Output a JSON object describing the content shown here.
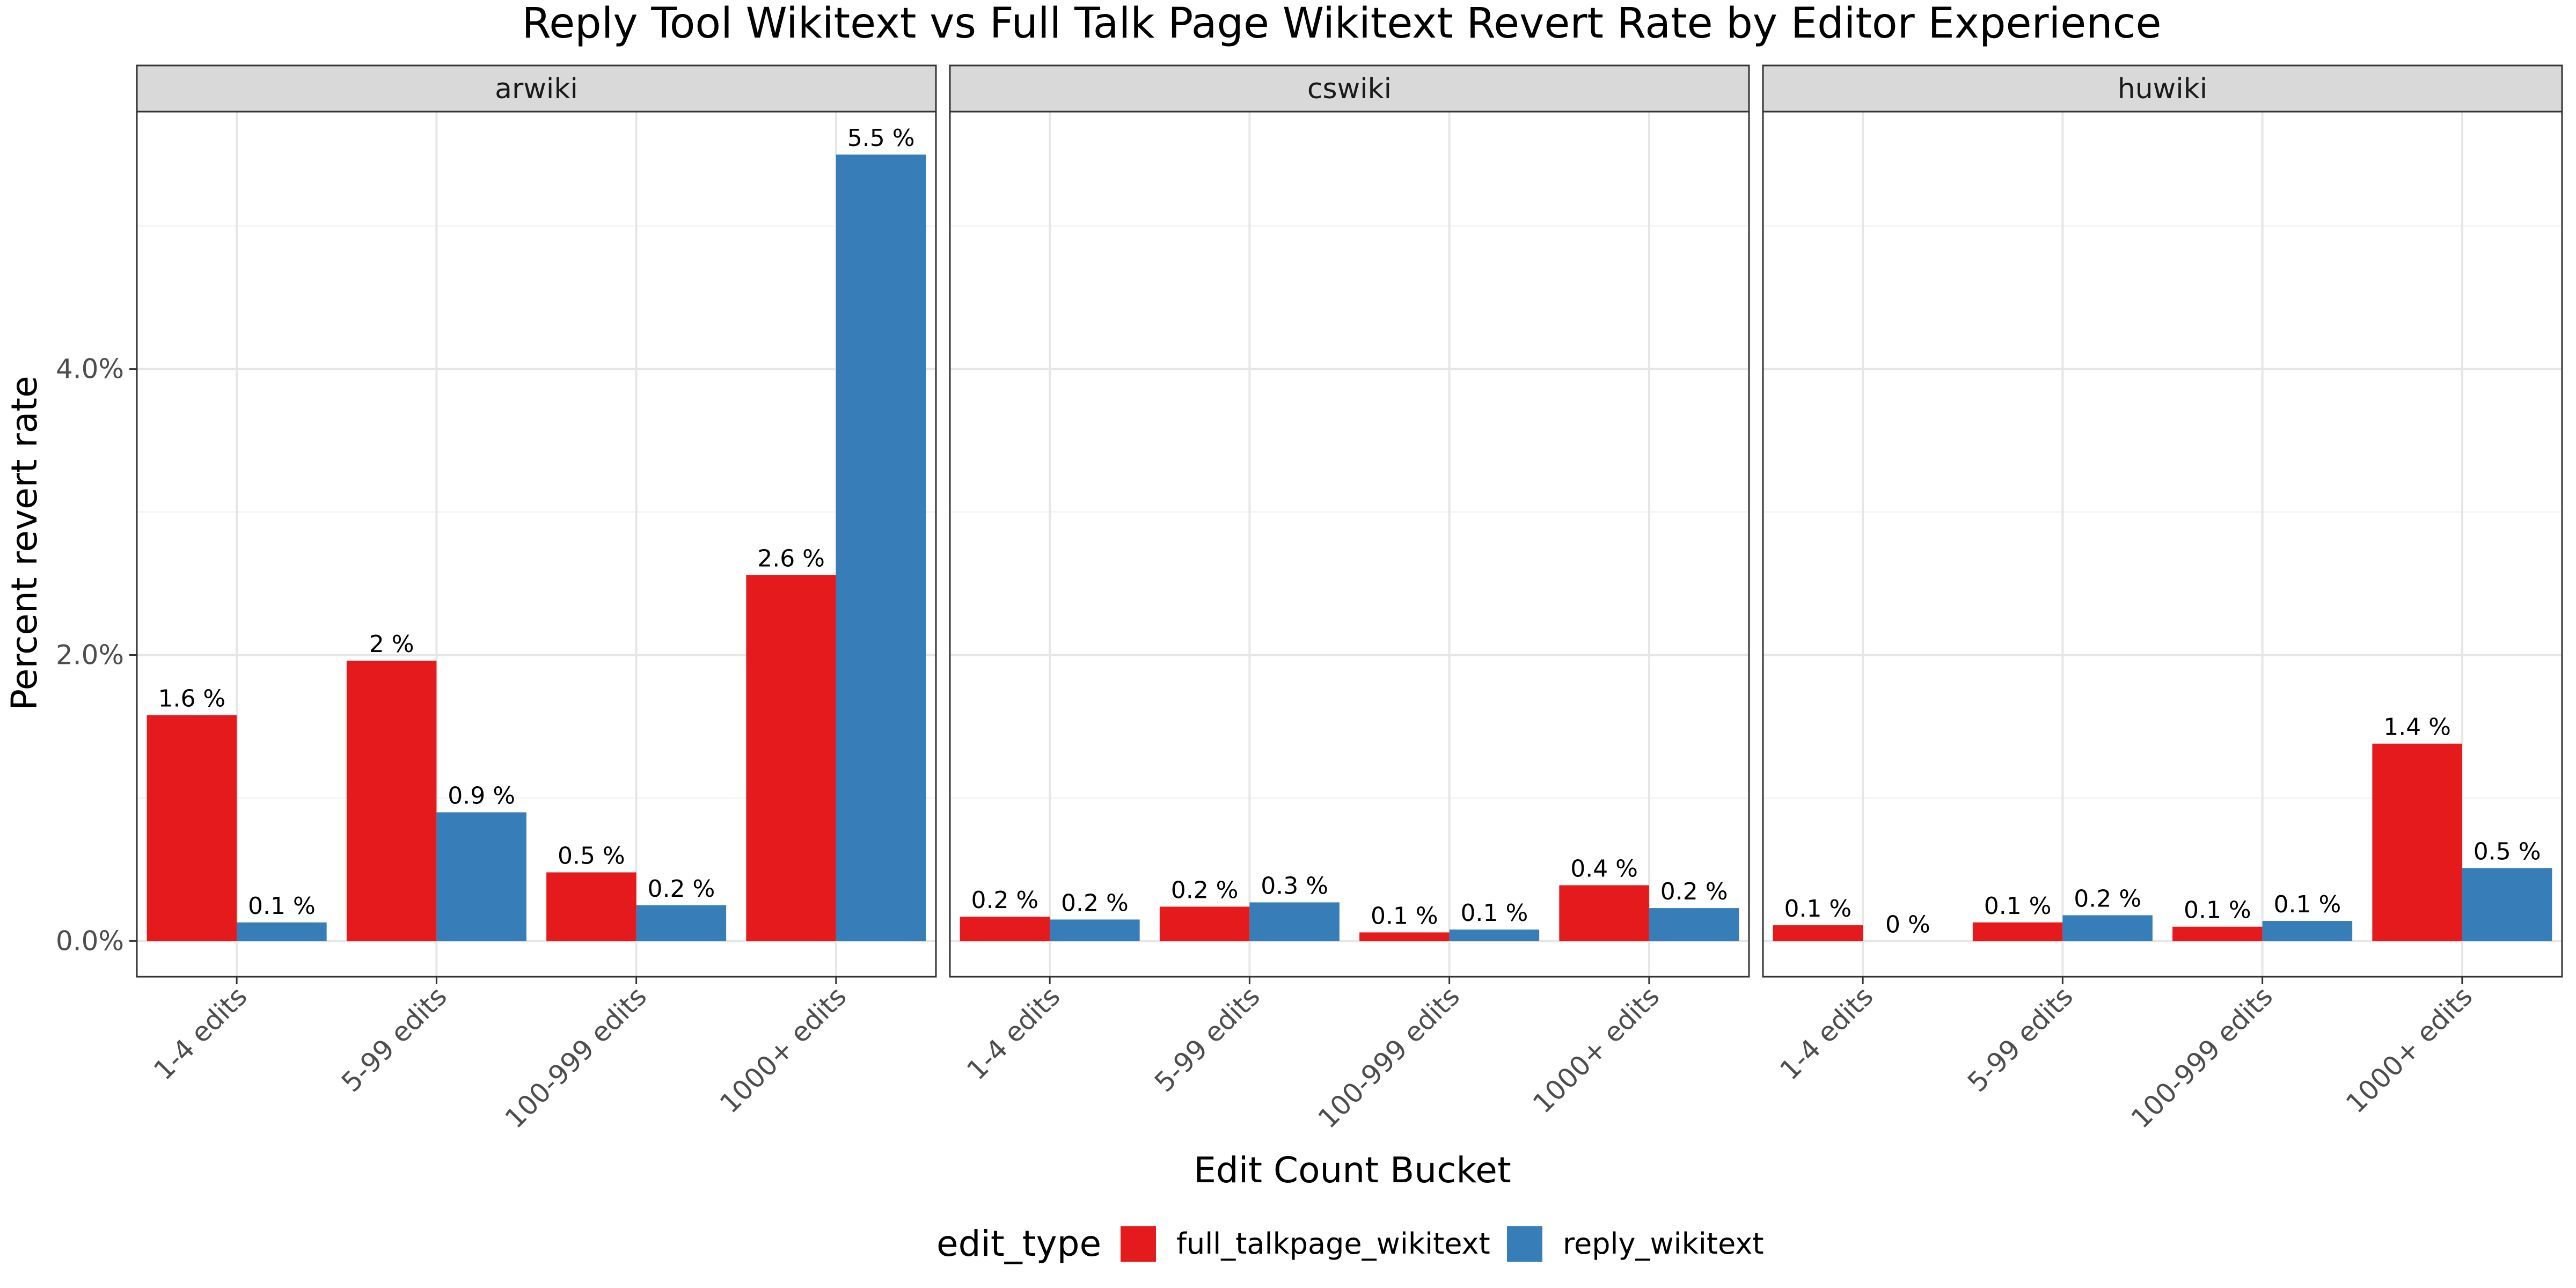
{
  "chart_data": {
    "type": "bar",
    "title": "Reply Tool Wikitext vs Full Talk Page Wikitext Revert Rate by Editor Experience",
    "xlabel": "Edit Count Bucket",
    "ylabel": "Percent revert rate",
    "categories": [
      "1-4 edits",
      "5-99 edits",
      "100-999 edits",
      "1000+ edits"
    ],
    "y_ticks": [
      "0.0%",
      "2.0%",
      "4.0%"
    ],
    "y_tick_values": [
      0,
      2,
      4
    ],
    "ylim": [
      -0.25,
      5.8
    ],
    "grid": true,
    "legend": {
      "title": "edit_type",
      "placement": "bottom",
      "entries": [
        "full_talkpage_wikitext",
        "reply_wikitext"
      ]
    },
    "colors": {
      "full_talkpage_wikitext": "#e41a1c",
      "reply_wikitext": "#377eb8"
    },
    "facets": [
      {
        "name": "arwiki",
        "series": [
          {
            "name": "full_talkpage_wikitext",
            "values": [
              1.58,
              1.96,
              0.48,
              2.56
            ],
            "labels": [
              "1.6 %",
              "2 %",
              "0.5 %",
              "2.6 %"
            ]
          },
          {
            "name": "reply_wikitext",
            "values": [
              0.13,
              0.9,
              0.25,
              5.5
            ],
            "labels": [
              "0.1 %",
              "0.9 %",
              "0.2 %",
              "5.5 %"
            ]
          }
        ]
      },
      {
        "name": "cswiki",
        "series": [
          {
            "name": "full_talkpage_wikitext",
            "values": [
              0.17,
              0.24,
              0.06,
              0.39
            ],
            "labels": [
              "0.2 %",
              "0.2 %",
              "0.1 %",
              "0.4 %"
            ]
          },
          {
            "name": "reply_wikitext",
            "values": [
              0.15,
              0.27,
              0.08,
              0.23
            ],
            "labels": [
              "0.2 %",
              "0.3 %",
              "0.1 %",
              "0.2 %"
            ]
          }
        ]
      },
      {
        "name": "huwiki",
        "series": [
          {
            "name": "full_talkpage_wikitext",
            "values": [
              0.11,
              0.13,
              0.1,
              1.38
            ],
            "labels": [
              "0.1 %",
              "0.1 %",
              "0.1 %",
              "1.4 %"
            ]
          },
          {
            "name": "reply_wikitext",
            "values": [
              0.0,
              0.18,
              0.14,
              0.51
            ],
            "labels": [
              "0 %",
              "0.2 %",
              "0.1 %",
              "0.5 %"
            ]
          }
        ]
      }
    ]
  }
}
